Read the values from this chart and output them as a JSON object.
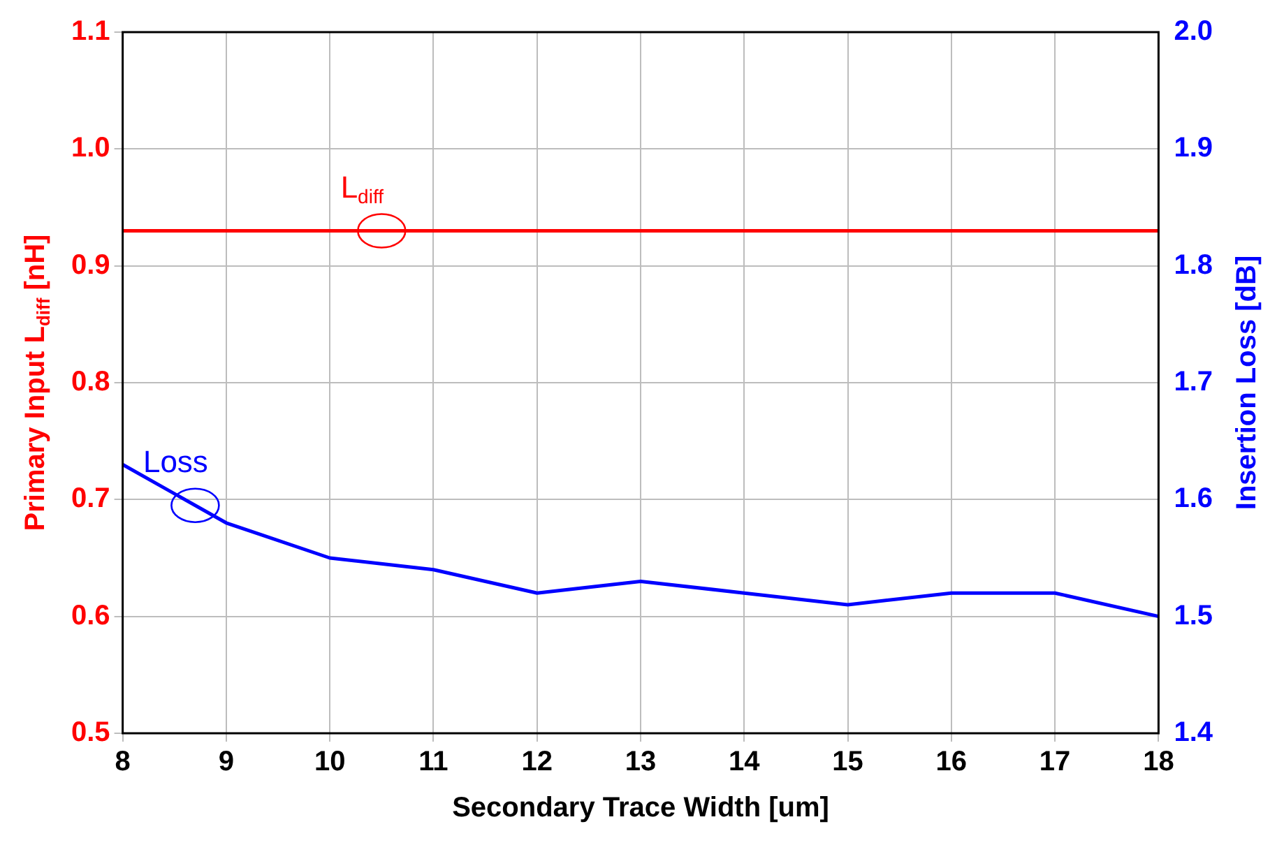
{
  "chart_data": {
    "type": "line",
    "xlabel": "Secondary Trace Width [um]",
    "ylabel": "Primary Input L$_{diff}$ [nH]",
    "y2label": "Insertion Loss [dB]",
    "x": [
      8,
      9,
      10,
      11,
      12,
      13,
      14,
      15,
      16,
      17,
      18
    ],
    "series": [
      {
        "color": "#ff0000",
        "values": [
          0.93,
          0.93,
          0.93,
          0.93,
          0.93,
          0.93,
          0.93,
          0.93,
          0.93,
          0.93,
          0.93
        ]
      },
      {
        "color": "#0000ff",
        "axis": "y2",
        "values": [
          1.63,
          1.58,
          1.55,
          1.54,
          1.52,
          1.53,
          1.52,
          1.51,
          1.52,
          1.52,
          1.5
        ]
      }
    ],
    "xlim": [
      8,
      18
    ],
    "xticks": [
      8,
      9,
      10,
      11,
      12,
      13,
      14,
      15,
      16,
      17,
      18
    ],
    "ylim": [
      0.5,
      1.1
    ],
    "yticks": [
      0.5,
      0.6,
      0.7,
      0.8,
      0.9,
      {
        "value": 1,
        "label": "1.0"
      },
      1.1
    ],
    "y2lim": [
      1.4,
      2.0
    ],
    "y2ticks": [
      1.4,
      1.5,
      1.6,
      1.7,
      1.8,
      1.9,
      {
        "value": 2,
        "label": "2.0"
      }
    ],
    "annotations": [
      {
        "text": "L$_{diff}$",
        "x": 10.5,
        "y": 0.93
      },
      {
        "text": "Loss",
        "x": 8.7,
        "y": 0.695
      }
    ],
    "grid": true,
    "legend": false,
    "marker": "none",
    "line_style": "solid"
  }
}
